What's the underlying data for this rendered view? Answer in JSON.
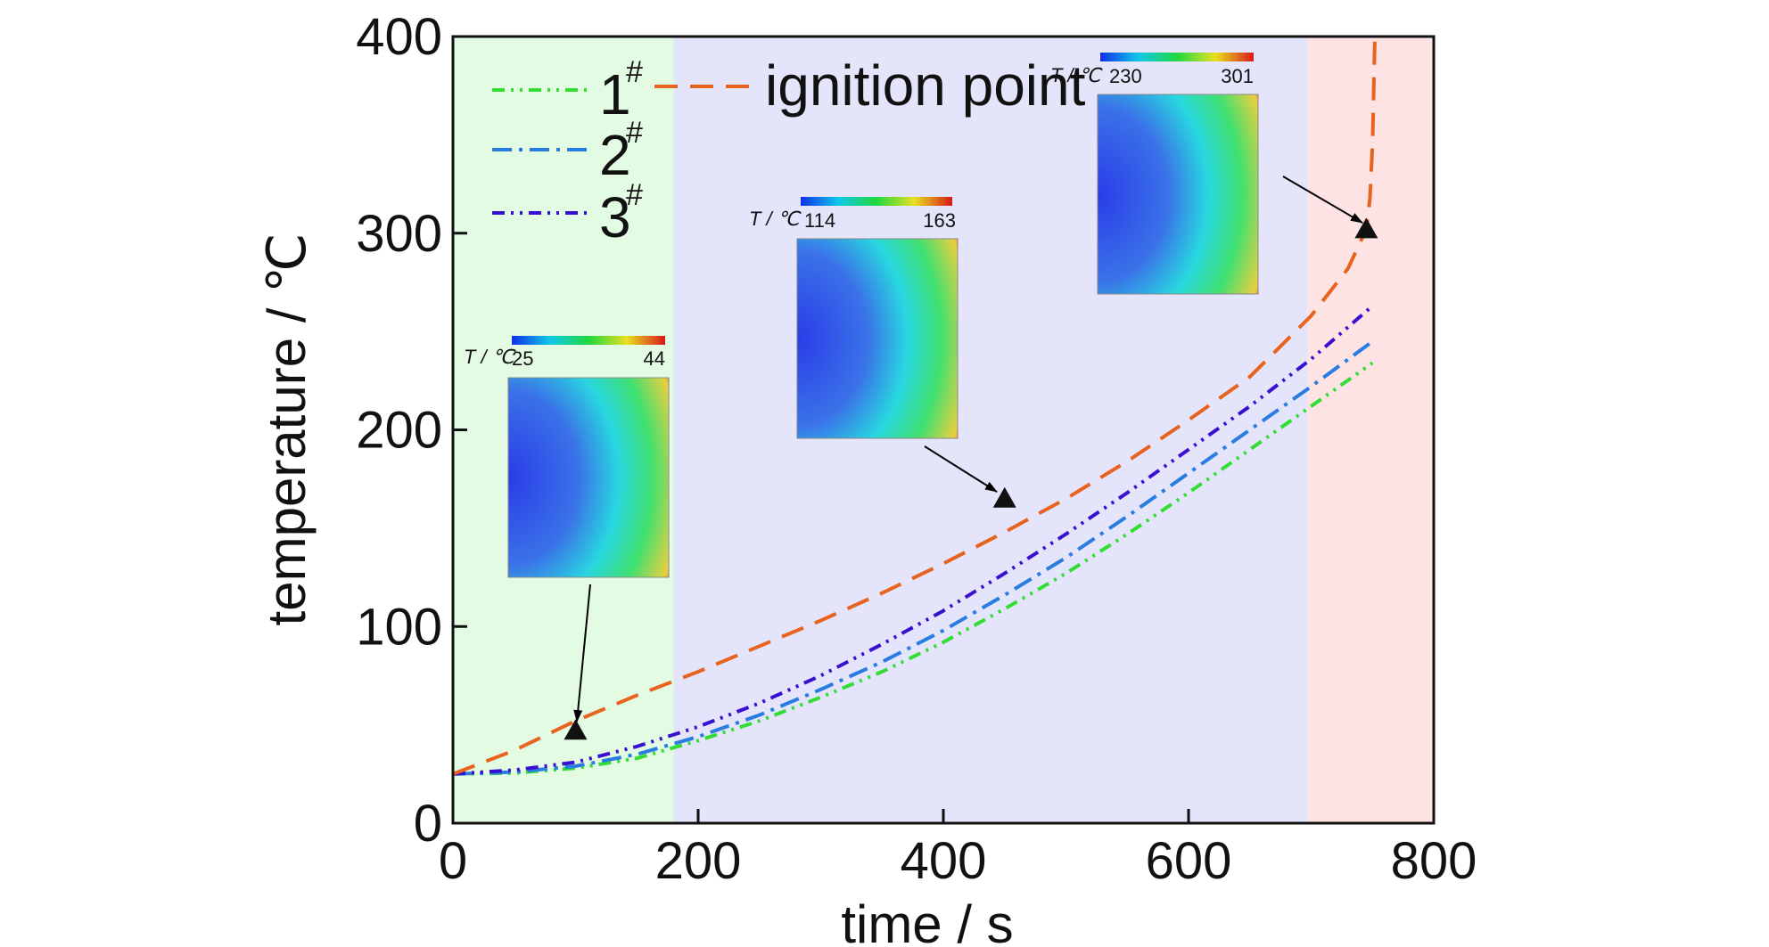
{
  "chart_data": {
    "type": "line",
    "xlabel": "time / s",
    "ylabel": "temperature / ℃",
    "xlim": [
      0,
      800
    ],
    "ylim": [
      0,
      400
    ],
    "xticks": [
      0,
      200,
      400,
      600,
      800
    ],
    "yticks": [
      0,
      100,
      200,
      300,
      400
    ],
    "grid": false,
    "legend_position": "top-left",
    "regions": [
      {
        "x0": 0,
        "x1": 180,
        "color": "#e3fbe3"
      },
      {
        "x0": 180,
        "x1": 697,
        "color": "#e4e4fb"
      },
      {
        "x0": 697,
        "x1": 800,
        "color": "#fde3e3"
      }
    ],
    "series": [
      {
        "name": "1",
        "sup": "#",
        "color": "#33dd33",
        "dash": "14 7 3 7 3 7",
        "points": [
          [
            0,
            25
          ],
          [
            50,
            25.5
          ],
          [
            100,
            28
          ],
          [
            150,
            33
          ],
          [
            200,
            42
          ],
          [
            250,
            52
          ],
          [
            300,
            64
          ],
          [
            350,
            77
          ],
          [
            400,
            92
          ],
          [
            450,
            109
          ],
          [
            500,
            127
          ],
          [
            550,
            147
          ],
          [
            600,
            168
          ],
          [
            650,
            190
          ],
          [
            700,
            212
          ],
          [
            750,
            234
          ]
        ]
      },
      {
        "name": "2",
        "sup": "#",
        "color": "#2a7de0",
        "dash": "22 8 4 8",
        "points": [
          [
            0,
            25
          ],
          [
            50,
            26
          ],
          [
            100,
            29
          ],
          [
            150,
            35
          ],
          [
            200,
            44
          ],
          [
            250,
            55
          ],
          [
            300,
            68
          ],
          [
            350,
            82
          ],
          [
            400,
            98
          ],
          [
            450,
            116
          ],
          [
            500,
            135
          ],
          [
            550,
            156
          ],
          [
            600,
            178
          ],
          [
            650,
            200
          ],
          [
            700,
            222
          ],
          [
            750,
            245
          ]
        ]
      },
      {
        "name": "3",
        "sup": "#",
        "color": "#3a10d0",
        "dash": "14 7 3 7 3 7",
        "points": [
          [
            0,
            25
          ],
          [
            50,
            27
          ],
          [
            100,
            31
          ],
          [
            150,
            39
          ],
          [
            200,
            49
          ],
          [
            250,
            61
          ],
          [
            300,
            75
          ],
          [
            350,
            91
          ],
          [
            400,
            108
          ],
          [
            450,
            127
          ],
          [
            500,
            147
          ],
          [
            550,
            168
          ],
          [
            600,
            190
          ],
          [
            650,
            212
          ],
          [
            700,
            236
          ],
          [
            750,
            263
          ]
        ]
      },
      {
        "name": "ignition point",
        "sup": "",
        "color": "#e8641e",
        "dash": "26 14",
        "points": [
          [
            0,
            25
          ],
          [
            50,
            37
          ],
          [
            100,
            52
          ],
          [
            150,
            65
          ],
          [
            200,
            77
          ],
          [
            250,
            90
          ],
          [
            300,
            103
          ],
          [
            350,
            117
          ],
          [
            400,
            132
          ],
          [
            450,
            148
          ],
          [
            500,
            165
          ],
          [
            550,
            184
          ],
          [
            600,
            205
          ],
          [
            650,
            227
          ],
          [
            700,
            258
          ],
          [
            730,
            282
          ],
          [
            745,
            302
          ],
          [
            748,
            318
          ],
          [
            750,
            345
          ],
          [
            752,
            400
          ]
        ]
      }
    ],
    "markers": [
      {
        "x": 100,
        "y": 47
      },
      {
        "x": 450,
        "y": 165
      },
      {
        "x": 745,
        "y": 302
      }
    ],
    "insets": [
      {
        "label": "T / ℃",
        "min": "25",
        "max": "44"
      },
      {
        "label": "T / ℃",
        "min": "114",
        "max": "163"
      },
      {
        "label": "T / ℃",
        "min": "230",
        "max": "301"
      }
    ]
  }
}
